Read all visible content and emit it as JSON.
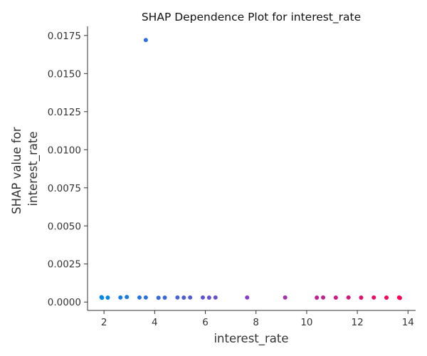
{
  "chart_data": {
    "type": "scatter",
    "title": "SHAP Dependence Plot for interest_rate",
    "xlabel": "interest_rate",
    "ylabel": [
      "SHAP value for",
      "interest_rate"
    ],
    "xlim": [
      1.35,
      14.3
    ],
    "ylim": [
      -0.00055,
      0.0181
    ],
    "xticks": [
      2,
      4,
      6,
      8,
      10,
      12,
      14
    ],
    "xtick_labels": [
      "2",
      "4",
      "6",
      "8",
      "10",
      "12",
      "14"
    ],
    "yticks": [
      0,
      0.0025,
      0.005,
      0.0075,
      0.01,
      0.0125,
      0.015,
      0.0175
    ],
    "ytick_labels": [
      "0.0000",
      "0.0025",
      "0.0050",
      "0.0075",
      "0.0100",
      "0.0125",
      "0.0150",
      "0.0175"
    ],
    "grid": false,
    "color_scale": {
      "low": "#0088e6",
      "mid": "#8a3cc4",
      "high": "#ff0052",
      "range": [
        1.9,
        13.7
      ]
    },
    "points": [
      {
        "x": 1.9,
        "y": 0.00032
      },
      {
        "x": 1.92,
        "y": 0.00028
      },
      {
        "x": 2.15,
        "y": 0.00029
      },
      {
        "x": 2.65,
        "y": 0.0003
      },
      {
        "x": 2.9,
        "y": 0.00033
      },
      {
        "x": 3.4,
        "y": 0.0003
      },
      {
        "x": 3.65,
        "y": 0.0172
      },
      {
        "x": 3.65,
        "y": 0.0003
      },
      {
        "x": 4.15,
        "y": 0.00028
      },
      {
        "x": 4.4,
        "y": 0.00029
      },
      {
        "x": 4.9,
        "y": 0.0003
      },
      {
        "x": 5.15,
        "y": 0.00029
      },
      {
        "x": 5.4,
        "y": 0.0003
      },
      {
        "x": 5.9,
        "y": 0.0003
      },
      {
        "x": 6.15,
        "y": 0.00029
      },
      {
        "x": 6.4,
        "y": 0.0003
      },
      {
        "x": 7.65,
        "y": 0.0003
      },
      {
        "x": 9.15,
        "y": 0.0003
      },
      {
        "x": 10.4,
        "y": 0.00029
      },
      {
        "x": 10.65,
        "y": 0.0003
      },
      {
        "x": 11.15,
        "y": 0.00029
      },
      {
        "x": 11.65,
        "y": 0.0003
      },
      {
        "x": 12.15,
        "y": 0.00029
      },
      {
        "x": 12.65,
        "y": 0.0003
      },
      {
        "x": 13.15,
        "y": 0.00029
      },
      {
        "x": 13.65,
        "y": 0.0003
      },
      {
        "x": 13.68,
        "y": 0.00027
      }
    ]
  }
}
